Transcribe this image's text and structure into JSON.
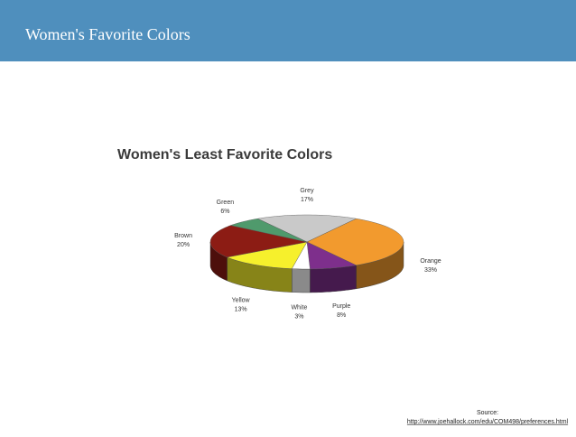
{
  "header": {
    "title": "Women's Favorite Colors"
  },
  "chart_data": {
    "type": "pie",
    "title": "Women's Least Favorite Colors",
    "categories": [
      "Grey",
      "Orange",
      "Purple",
      "White",
      "Yellow",
      "Brown",
      "Green"
    ],
    "values": [
      17,
      33,
      8,
      3,
      13,
      20,
      6
    ],
    "value_labels": [
      "17%",
      "33%",
      "8%",
      "3%",
      "13%",
      "20%",
      "6%"
    ],
    "colors": [
      "#c9c9c9",
      "#f29a2e",
      "#7e2f8c",
      "#ffffff",
      "#f6f02c",
      "#8c1c14",
      "#4f9a6c"
    ]
  },
  "source": {
    "label": "Source:",
    "url": "http://www.joehallock.com/edu/COM498/preferences.html"
  }
}
